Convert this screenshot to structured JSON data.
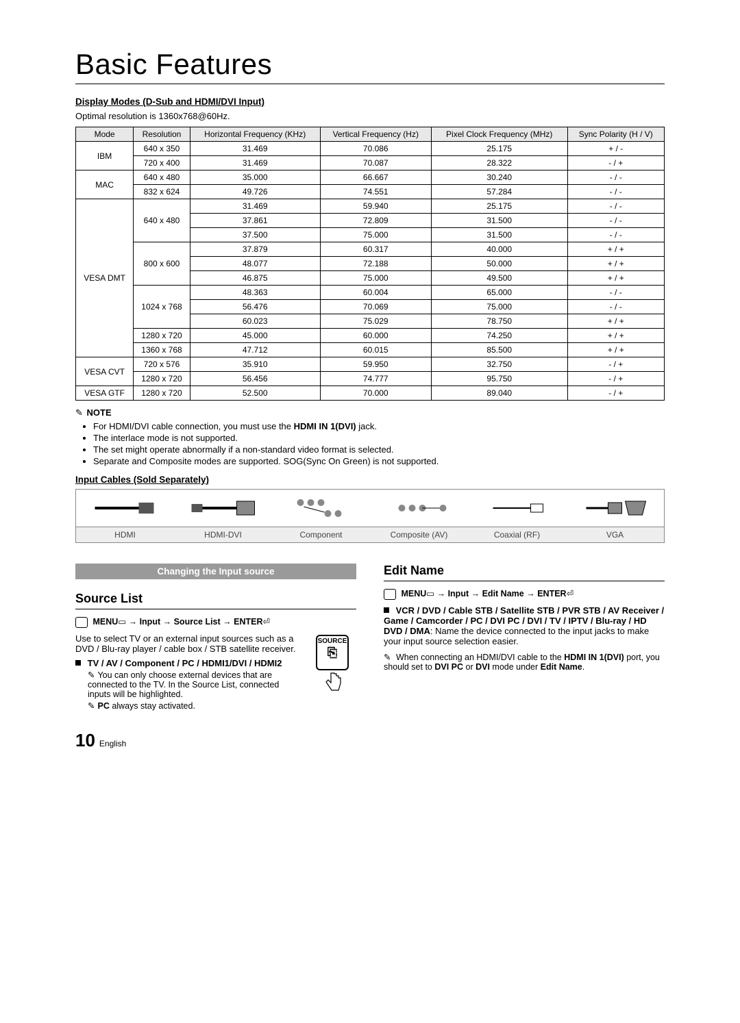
{
  "title": "Basic Features",
  "displayModesHeading": "Display Modes (D-Sub and HDMI/DVI Input)",
  "optimalText": "Optimal resolution is 1360x768@60Hz.",
  "table": {
    "headers": [
      "Mode",
      "Resolution",
      "Horizontal Frequency (KHz)",
      "Vertical Frequency (Hz)",
      "Pixel Clock Frequency (MHz)",
      "Sync Polarity (H / V)"
    ],
    "groups": [
      {
        "mode": "IBM",
        "rows": [
          [
            "640 x 350",
            "31.469",
            "70.086",
            "25.175",
            "+ / -"
          ],
          [
            "720 x 400",
            "31.469",
            "70.087",
            "28.322",
            "- / +"
          ]
        ]
      },
      {
        "mode": "MAC",
        "rows": [
          [
            "640 x 480",
            "35.000",
            "66.667",
            "30.240",
            "- / -"
          ],
          [
            "832 x 624",
            "49.726",
            "74.551",
            "57.284",
            "- / -"
          ]
        ]
      },
      {
        "mode": "VESA DMT",
        "subgroups": [
          {
            "res": "640 x 480",
            "rows": [
              [
                "31.469",
                "59.940",
                "25.175",
                "- / -"
              ],
              [
                "37.861",
                "72.809",
                "31.500",
                "- / -"
              ],
              [
                "37.500",
                "75.000",
                "31.500",
                "- / -"
              ]
            ]
          },
          {
            "res": "800 x 600",
            "rows": [
              [
                "37.879",
                "60.317",
                "40.000",
                "+ / +"
              ],
              [
                "48.077",
                "72.188",
                "50.000",
                "+ / +"
              ],
              [
                "46.875",
                "75.000",
                "49.500",
                "+ / +"
              ]
            ]
          },
          {
            "res": "1024 x 768",
            "rows": [
              [
                "48.363",
                "60.004",
                "65.000",
                "- / -"
              ],
              [
                "56.476",
                "70.069",
                "75.000",
                "- / -"
              ],
              [
                "60.023",
                "75.029",
                "78.750",
                "+ / +"
              ]
            ]
          },
          {
            "res": "1280 x 720",
            "rows": [
              [
                "45.000",
                "60.000",
                "74.250",
                "+ / +"
              ]
            ]
          },
          {
            "res": "1360 x 768",
            "rows": [
              [
                "47.712",
                "60.015",
                "85.500",
                "+ / +"
              ]
            ]
          }
        ]
      },
      {
        "mode": "VESA CVT",
        "rows": [
          [
            "720 x 576",
            "35.910",
            "59.950",
            "32.750",
            "- / +"
          ],
          [
            "1280 x 720",
            "56.456",
            "74.777",
            "95.750",
            "- / +"
          ]
        ]
      },
      {
        "mode": "VESA GTF",
        "rows": [
          [
            "1280 x 720",
            "52.500",
            "70.000",
            "89.040",
            "- / +"
          ]
        ]
      }
    ]
  },
  "noteLabel": "NOTE",
  "noteIcon": "✎",
  "notes": [
    {
      "pre": "For HDMI/DVI cable connection, you must use the ",
      "bold": "HDMI IN 1(DVI)",
      "post": " jack."
    },
    {
      "pre": "The interlace mode is not supported.",
      "bold": "",
      "post": ""
    },
    {
      "pre": "The set might operate abnormally if a non-standard video format is selected.",
      "bold": "",
      "post": ""
    },
    {
      "pre": "Separate and Composite modes are supported. SOG(Sync On Green) is not supported.",
      "bold": "",
      "post": ""
    }
  ],
  "inputCablesHeading": "Input Cables (Sold Separately)",
  "cableLabels": [
    "HDMI",
    "HDMI-DVI",
    "Component",
    "Composite (AV)",
    "Coaxial (RF)",
    "VGA"
  ],
  "sectionBar": "Changing the Input source",
  "sourceList": {
    "heading": "Source List",
    "menuPath": {
      "menu": "MENU",
      "arrow": "→",
      "seg1": "Input",
      "seg2": "Source List",
      "enter": "ENTER"
    },
    "desc": "Use to select TV or an external input sources such as a DVD / Blu-ray player / cable box / STB satellite receiver.",
    "bullet": "TV / AV / Component / PC / HDMI1/DVI / HDMI2",
    "sub1": "You can only choose external devices that are connected to the TV. In the Source List, connected inputs will be highlighted.",
    "sub2pre": "",
    "sub2bold": "PC",
    "sub2post": " always stay activated.",
    "sourceBtnLabel": "SOURCE"
  },
  "editName": {
    "heading": "Edit Name",
    "menuPath": {
      "menu": "MENU",
      "arrow": "→",
      "seg1": "Input",
      "seg2": "Edit Name",
      "enter": "ENTER"
    },
    "bulletBold": "VCR / DVD / Cable STB / Satellite STB / PVR STB / AV Receiver / Game / Camcorder / PC / DVI PC / DVI / TV / IPTV / Blu-ray / HD DVD / DMA",
    "bulletPost": ": Name the device connected to the input jacks to make your input source selection easier.",
    "notePre": "When connecting an HDMI/DVI cable to the ",
    "noteBold1": "HDMI IN 1(DVI)",
    "noteMid": " port, you should set to ",
    "noteBold2": "DVI PC",
    "noteMid2": " or ",
    "noteBold3": "DVI",
    "notePost": " mode under ",
    "noteBold4": "Edit Name",
    "noteEnd": "."
  },
  "page": {
    "num": "10",
    "lang": "English"
  },
  "enterGlyph": "⏎",
  "menuGlyph": "▭"
}
